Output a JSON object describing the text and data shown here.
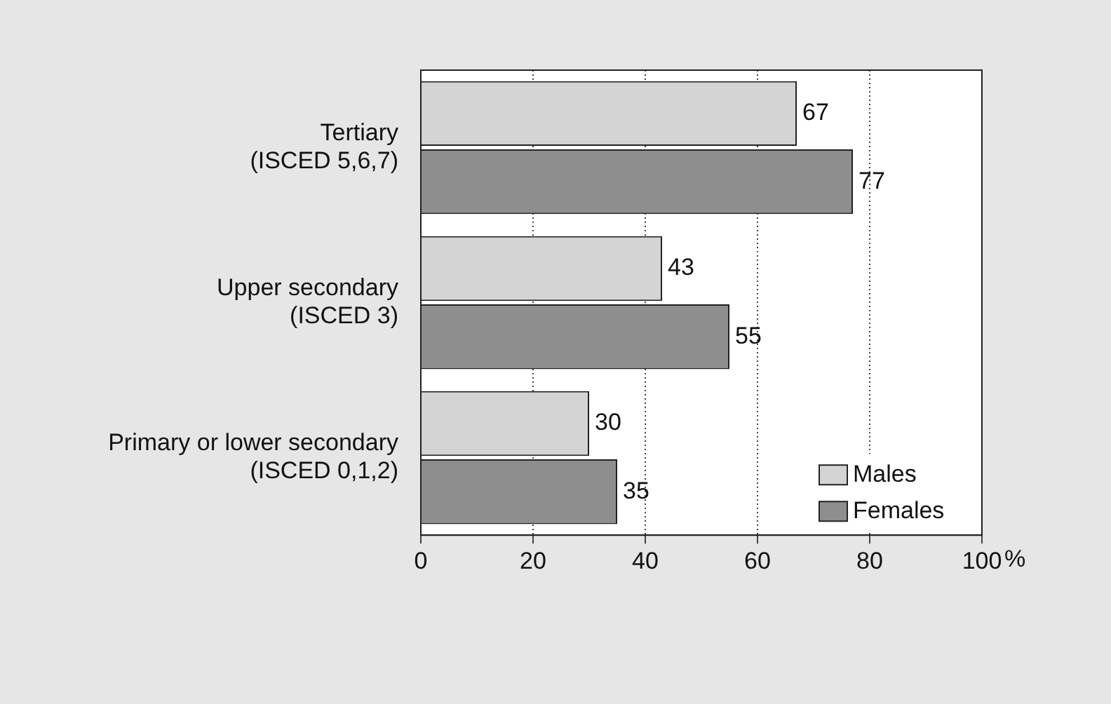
{
  "chart_data": {
    "type": "bar",
    "orientation": "horizontal",
    "categories": [
      "Tertiary\n(ISCED 5,6,7)",
      "Upper secondary\n(ISCED 3)",
      "Primary or lower secondary\n(ISCED 0,1,2)"
    ],
    "series": [
      {
        "name": "Males",
        "color": "#d4d4d4",
        "values": [
          67,
          43,
          30
        ]
      },
      {
        "name": "Females",
        "color": "#8e8e8e",
        "values": [
          77,
          55,
          35
        ]
      }
    ],
    "xlabel": "%",
    "xlim": [
      0,
      100
    ],
    "xticks": [
      0,
      20,
      40,
      60,
      80,
      100
    ],
    "grid": "x",
    "legend": "bottom right",
    "data_labels": true
  }
}
